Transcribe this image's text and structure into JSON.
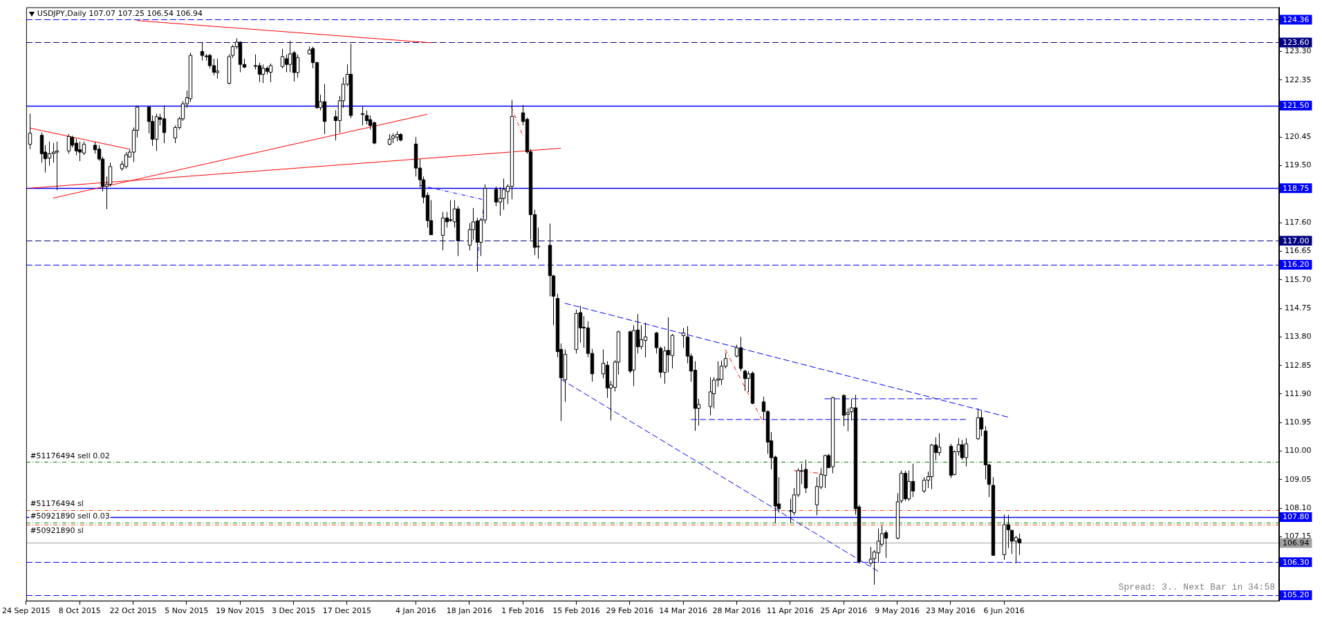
{
  "chart_data": {
    "type": "candlestick",
    "title": "USDJPY,Daily 107.07 107.25 106.54 106.94",
    "color": "#000000",
    "x": [
      "2015-09-25",
      "2015-09-28",
      "2015-09-29",
      "2015-09-30",
      "2015-10-01",
      "2015-10-02",
      "2015-10-05",
      "2015-10-06",
      "2015-10-07",
      "2015-10-08",
      "2015-10-09",
      "2015-10-12",
      "2015-10-13",
      "2015-10-14",
      "2015-10-15",
      "2015-10-16",
      "2015-10-19",
      "2015-10-20",
      "2015-10-21",
      "2015-10-22",
      "2015-10-23",
      "2015-10-26",
      "2015-10-27",
      "2015-10-28",
      "2015-10-29",
      "2015-10-30",
      "2015-11-02",
      "2015-11-03",
      "2015-11-04",
      "2015-11-05",
      "2015-11-06",
      "2015-11-09",
      "2015-11-10",
      "2015-11-11",
      "2015-11-12",
      "2015-11-13",
      "2015-11-16",
      "2015-11-17",
      "2015-11-18",
      "2015-11-19",
      "2015-11-20",
      "2015-11-23",
      "2015-11-24",
      "2015-11-25",
      "2015-11-26",
      "2015-11-27",
      "2015-11-30",
      "2015-12-01",
      "2015-12-02",
      "2015-12-03",
      "2015-12-04",
      "2015-12-07",
      "2015-12-08",
      "2015-12-09",
      "2015-12-10",
      "2015-12-11",
      "2015-12-14",
      "2015-12-15",
      "2015-12-16",
      "2015-12-17",
      "2015-12-18",
      "2015-12-21",
      "2015-12-22",
      "2015-12-23",
      "2015-12-24",
      "2015-12-28",
      "2015-12-29",
      "2015-12-30",
      "2015-12-31",
      "2016-01-04",
      "2016-01-05",
      "2016-01-06",
      "2016-01-07",
      "2016-01-08",
      "2016-01-11",
      "2016-01-12",
      "2016-01-13",
      "2016-01-14",
      "2016-01-15",
      "2016-01-18",
      "2016-01-19",
      "2016-01-20",
      "2016-01-21",
      "2016-01-22",
      "2016-01-25",
      "2016-01-26",
      "2016-01-27",
      "2016-01-28",
      "2016-01-29",
      "2016-02-01",
      "2016-02-02",
      "2016-02-03",
      "2016-02-04",
      "2016-02-05",
      "2016-02-08",
      "2016-02-09",
      "2016-02-10",
      "2016-02-11",
      "2016-02-12",
      "2016-02-15",
      "2016-02-16",
      "2016-02-17",
      "2016-02-18",
      "2016-02-19",
      "2016-02-22",
      "2016-02-23",
      "2016-02-24",
      "2016-02-25",
      "2016-02-26",
      "2016-02-29",
      "2016-03-01",
      "2016-03-02",
      "2016-03-03",
      "2016-03-04",
      "2016-03-07",
      "2016-03-08",
      "2016-03-09",
      "2016-03-10",
      "2016-03-11",
      "2016-03-14",
      "2016-03-15",
      "2016-03-16",
      "2016-03-17",
      "2016-03-18",
      "2016-03-21",
      "2016-03-22",
      "2016-03-23",
      "2016-03-24",
      "2016-03-25",
      "2016-03-28",
      "2016-03-29",
      "2016-03-30",
      "2016-03-31",
      "2016-04-01",
      "2016-04-04",
      "2016-04-05",
      "2016-04-06",
      "2016-04-07",
      "2016-04-08",
      "2016-04-11",
      "2016-04-12",
      "2016-04-13",
      "2016-04-14",
      "2016-04-15",
      "2016-04-18",
      "2016-04-19",
      "2016-04-20",
      "2016-04-21",
      "2016-04-22",
      "2016-04-25",
      "2016-04-26",
      "2016-04-27",
      "2016-04-28",
      "2016-04-29",
      "2016-05-02",
      "2016-05-03",
      "2016-05-04",
      "2016-05-05",
      "2016-05-06",
      "2016-05-09",
      "2016-05-10",
      "2016-05-11",
      "2016-05-12",
      "2016-05-13",
      "2016-05-16",
      "2016-05-17",
      "2016-05-18",
      "2016-05-19",
      "2016-05-20",
      "2016-05-23",
      "2016-05-24",
      "2016-05-25",
      "2016-05-26",
      "2016-05-27",
      "2016-05-30",
      "2016-05-31",
      "2016-06-01",
      "2016-06-02",
      "2016-06-03",
      "2016-06-06",
      "2016-06-07",
      "2016-06-08",
      "2016-06-09",
      "2016-06-10"
    ],
    "ohlc": [
      [
        120.21,
        121.23,
        120.05,
        120.58
      ],
      [
        120.51,
        120.6,
        119.6,
        119.9
      ],
      [
        119.95,
        120.18,
        119.27,
        119.73
      ],
      [
        119.75,
        120.3,
        119.5,
        119.9
      ],
      [
        119.9,
        120.25,
        119.6,
        119.95
      ],
      [
        119.95,
        120.3,
        118.68,
        119.99
      ],
      [
        119.99,
        120.55,
        119.9,
        120.47
      ],
      [
        120.44,
        120.5,
        120.1,
        120.18
      ],
      [
        120.25,
        120.4,
        119.85,
        119.99
      ],
      [
        120.03,
        120.3,
        119.65,
        119.95
      ],
      [
        119.92,
        120.3,
        119.85,
        120.21
      ],
      [
        120.18,
        120.3,
        119.9,
        120.03
      ],
      [
        120.05,
        120.18,
        119.66,
        119.72
      ],
      [
        119.72,
        119.8,
        118.64,
        118.81
      ],
      [
        118.81,
        119.14,
        118.05,
        118.88
      ],
      [
        118.88,
        119.6,
        118.81,
        119.47
      ],
      [
        119.4,
        119.66,
        119.33,
        119.55
      ],
      [
        119.47,
        119.95,
        119.4,
        119.86
      ],
      [
        119.79,
        120.05,
        119.77,
        119.95
      ],
      [
        119.95,
        120.77,
        119.62,
        120.68
      ],
      [
        120.68,
        121.5,
        120.44,
        121.45
      ],
      [
        121.45,
        121.5,
        120.58,
        120.97
      ],
      [
        120.97,
        121.17,
        120.16,
        120.38
      ],
      [
        120.38,
        121.23,
        119.99,
        121.13
      ],
      [
        121.1,
        121.23,
        120.84,
        121.04
      ],
      [
        121.06,
        121.5,
        120.25,
        120.6
      ],
      [
        120.42,
        120.84,
        120.25,
        120.77
      ],
      [
        120.77,
        121.13,
        120.7,
        121.06
      ],
      [
        121.06,
        121.65,
        120.99,
        121.56
      ],
      [
        121.56,
        122.0,
        121.43,
        121.76
      ],
      [
        121.73,
        123.26,
        121.62,
        123.17
      ],
      [
        123.3,
        123.6,
        123.0,
        123.17
      ],
      [
        123.15,
        123.22,
        123.0,
        123.13
      ],
      [
        123.17,
        123.22,
        122.74,
        122.83
      ],
      [
        122.83,
        123.06,
        122.51,
        122.61
      ],
      [
        122.6,
        123.06,
        122.4,
        122.65
      ],
      [
        122.24,
        123.2,
        122.2,
        123.13
      ],
      [
        123.17,
        123.52,
        123.09,
        123.46
      ],
      [
        123.46,
        123.74,
        123.39,
        123.61
      ],
      [
        123.61,
        123.64,
        122.61,
        122.87
      ],
      [
        122.87,
        123.06,
        122.74,
        122.78
      ],
      [
        122.83,
        123.2,
        122.7,
        122.82
      ],
      [
        122.83,
        122.93,
        122.28,
        122.54
      ],
      [
        122.54,
        122.87,
        122.25,
        122.74
      ],
      [
        122.74,
        122.8,
        122.54,
        122.64
      ],
      [
        122.61,
        122.9,
        122.28,
        122.83
      ],
      [
        122.8,
        123.39,
        122.74,
        123.13
      ],
      [
        123.06,
        123.2,
        122.61,
        122.87
      ],
      [
        122.87,
        123.65,
        122.61,
        123.22
      ],
      [
        123.26,
        123.32,
        122.3,
        122.6
      ],
      [
        122.6,
        123.2,
        122.43,
        123.1
      ],
      [
        123.22,
        123.46,
        123.2,
        123.35
      ],
      [
        123.4,
        123.46,
        122.74,
        122.93
      ],
      [
        122.93,
        122.96,
        121.39,
        121.43
      ],
      [
        121.43,
        121.86,
        121.34,
        121.63
      ],
      [
        121.63,
        122.22,
        120.55,
        120.97
      ],
      [
        121.13,
        121.34,
        120.34,
        121.0
      ],
      [
        121.0,
        121.82,
        120.6,
        121.66
      ],
      [
        121.66,
        122.44,
        121.43,
        122.21
      ],
      [
        122.21,
        122.87,
        122.15,
        122.54
      ],
      [
        122.54,
        123.56,
        121.08,
        121.17
      ],
      [
        121.2,
        121.47,
        120.84,
        121.23
      ],
      [
        121.17,
        121.34,
        120.87,
        121.0
      ],
      [
        121.03,
        121.17,
        120.7,
        120.84
      ],
      [
        120.93,
        120.97,
        120.21,
        120.25
      ],
      [
        120.21,
        120.55,
        120.18,
        120.38
      ],
      [
        120.41,
        120.58,
        120.25,
        120.49
      ],
      [
        120.45,
        120.64,
        120.31,
        120.54
      ],
      [
        120.54,
        120.58,
        120.31,
        120.35
      ],
      [
        120.22,
        120.45,
        119.14,
        119.42
      ],
      [
        119.42,
        119.72,
        118.77,
        119.03
      ],
      [
        119.03,
        119.14,
        118.25,
        118.45
      ],
      [
        118.51,
        118.61,
        117.44,
        117.67
      ],
      [
        117.67,
        118.35,
        117.2,
        117.2
      ],
      [
        117.18,
        117.96,
        116.68,
        117.76
      ],
      [
        117.76,
        117.96,
        117.44,
        117.63
      ],
      [
        117.7,
        118.35,
        117.63,
        117.69
      ],
      [
        117.63,
        118.35,
        117.44,
        118.06
      ],
      [
        118.06,
        118.15,
        116.49,
        117.0
      ],
      [
        116.85,
        117.59,
        116.68,
        117.37
      ],
      [
        117.37,
        118.09,
        117.04,
        117.63
      ],
      [
        117.66,
        117.76,
        115.97,
        116.95
      ],
      [
        116.95,
        117.76,
        116.49,
        117.69
      ],
      [
        117.69,
        118.88,
        117.57,
        118.74
      ],
      [
        118.71,
        118.81,
        118.15,
        118.29
      ],
      [
        118.29,
        118.78,
        117.83,
        118.41
      ],
      [
        118.41,
        119.07,
        118.03,
        118.71
      ],
      [
        118.64,
        118.88,
        118.22,
        118.81
      ],
      [
        118.81,
        121.69,
        118.38,
        121.14
      ],
      [
        121.26,
        121.52,
        120.84,
        120.97
      ],
      [
        121.04,
        121.1,
        119.9,
        119.96
      ],
      [
        119.96,
        120.05,
        117.04,
        117.87
      ],
      [
        117.87,
        118.03,
        116.52,
        116.78
      ],
      [
        116.8,
        117.44,
        116.4,
        116.82
      ],
      [
        116.85,
        117.57,
        115.15,
        115.84
      ],
      [
        115.83,
        115.87,
        114.19,
        115.15
      ],
      [
        115.08,
        115.24,
        113.12,
        113.31
      ],
      [
        113.38,
        113.58,
        111.0,
        112.44
      ],
      [
        112.37,
        113.38,
        111.64,
        113.22
      ],
      [
        113.38,
        114.71,
        113.25,
        114.58
      ],
      [
        114.61,
        114.84,
        113.61,
        114.1
      ],
      [
        114.12,
        114.49,
        113.44,
        114.1
      ],
      [
        114.1,
        114.32,
        113.12,
        113.25
      ],
      [
        113.25,
        113.4,
        112.31,
        112.57
      ],
      [
        112.57,
        113.38,
        112.42,
        112.92
      ],
      [
        112.86,
        112.99,
        111.77,
        112.1
      ],
      [
        112.1,
        112.33,
        111.02,
        112.2
      ],
      [
        112.12,
        113.03,
        111.98,
        112.96
      ],
      [
        112.96,
        114.01,
        112.55,
        113.97
      ],
      [
        113.97,
        114.01,
        112.59,
        112.66
      ],
      [
        112.7,
        114.19,
        112.16,
        114.01
      ],
      [
        114.03,
        114.56,
        113.25,
        113.47
      ],
      [
        113.48,
        114.19,
        113.38,
        113.71
      ],
      [
        113.68,
        114.27,
        113.12,
        113.8
      ],
      [
        113.93,
        113.97,
        113.25,
        113.44
      ],
      [
        113.42,
        113.48,
        112.44,
        112.62
      ],
      [
        112.62,
        113.48,
        112.24,
        113.33
      ],
      [
        113.35,
        114.45,
        112.62,
        113.2
      ],
      [
        113.18,
        113.9,
        112.75,
        113.85
      ],
      [
        113.84,
        114.1,
        113.44,
        113.93
      ],
      [
        113.8,
        114.16,
        112.92,
        113.16
      ],
      [
        113.16,
        113.25,
        112.31,
        112.66
      ],
      [
        112.69,
        112.99,
        110.67,
        111.42
      ],
      [
        111.42,
        111.74,
        110.85,
        111.55
      ],
      [
        111.48,
        112.46,
        111.19,
        111.97
      ],
      [
        111.91,
        112.46,
        111.42,
        112.36
      ],
      [
        112.36,
        112.99,
        112.14,
        112.4
      ],
      [
        112.38,
        113.01,
        112.2,
        112.83
      ],
      [
        112.82,
        113.27,
        112.75,
        113.08
      ],
      [
        113.16,
        113.54,
        113.12,
        113.44
      ],
      [
        113.44,
        113.8,
        112.66,
        112.75
      ],
      [
        112.66,
        112.71,
        112.0,
        112.41
      ],
      [
        112.42,
        112.66,
        111.97,
        112.57
      ],
      [
        112.59,
        112.65,
        111.55,
        111.59
      ],
      [
        111.64,
        111.81,
        111.05,
        111.32
      ],
      [
        111.32,
        111.35,
        109.91,
        110.3
      ],
      [
        110.34,
        110.63,
        109.39,
        109.78
      ],
      [
        109.8,
        109.85,
        107.62,
        108.17
      ],
      [
        108.24,
        109.13,
        107.95,
        108.08
      ],
      [
        108.0,
        108.41,
        107.62,
        108.02
      ],
      [
        107.95,
        108.77,
        107.86,
        108.54
      ],
      [
        108.54,
        109.43,
        108.47,
        109.35
      ],
      [
        109.33,
        109.58,
        108.9,
        109.35
      ],
      [
        109.39,
        109.71,
        108.6,
        108.77
      ],
      [
        108.21,
        109.13,
        107.86,
        108.82
      ],
      [
        108.8,
        109.43,
        108.73,
        109.22
      ],
      [
        109.19,
        109.88,
        108.77,
        109.85
      ],
      [
        109.85,
        109.91,
        109.43,
        109.45
      ],
      [
        109.48,
        111.81,
        109.26,
        111.78
      ],
      [
        111.85,
        111.89,
        110.83,
        111.19
      ],
      [
        111.22,
        111.42,
        110.66,
        111.28
      ],
      [
        111.31,
        111.74,
        111.02,
        111.44
      ],
      [
        111.44,
        111.87,
        107.88,
        108.08
      ],
      [
        108.14,
        108.21,
        106.25,
        106.31
      ],
      [
        106.27,
        106.81,
        106.18,
        106.4
      ],
      [
        106.42,
        106.7,
        105.55,
        106.64
      ],
      [
        106.61,
        107.42,
        106.28,
        107.0
      ],
      [
        106.9,
        107.52,
        106.81,
        107.25
      ],
      [
        107.28,
        107.36,
        106.44,
        107.1
      ],
      [
        107.1,
        108.6,
        107.06,
        108.31
      ],
      [
        108.34,
        109.35,
        108.27,
        109.26
      ],
      [
        109.26,
        109.35,
        108.34,
        108.41
      ],
      [
        108.41,
        109.35,
        108.34,
        108.99
      ],
      [
        108.99,
        109.58,
        108.47,
        108.67
      ],
      [
        108.67,
        109.13,
        108.6,
        109.03
      ],
      [
        109.03,
        109.32,
        108.77,
        109.15
      ],
      [
        109.15,
        110.24,
        108.73,
        110.2
      ],
      [
        110.2,
        110.46,
        109.69,
        109.95
      ],
      [
        109.95,
        110.6,
        109.85,
        110.13
      ],
      [
        110.16,
        110.24,
        109.1,
        109.19
      ],
      [
        109.22,
        110.02,
        109.19,
        109.98
      ],
      [
        109.98,
        110.43,
        109.85,
        110.21
      ],
      [
        110.21,
        110.37,
        109.71,
        109.78
      ],
      [
        109.78,
        110.43,
        109.49,
        110.24
      ],
      [
        110.41,
        111.42,
        110.37,
        111.11
      ],
      [
        111.11,
        111.35,
        110.5,
        110.73
      ],
      [
        110.67,
        110.83,
        109.06,
        109.54
      ],
      [
        109.54,
        109.58,
        108.47,
        108.89
      ],
      [
        108.86,
        109.13,
        106.51,
        106.53
      ],
      [
        106.55,
        107.88,
        106.38,
        107.55
      ],
      [
        107.55,
        107.88,
        106.77,
        107.38
      ],
      [
        107.36,
        107.38,
        106.57,
        107.0
      ],
      [
        107.0,
        107.18,
        106.27,
        107.12
      ],
      [
        107.07,
        107.25,
        106.54,
        106.94
      ]
    ],
    "series": [
      {
        "type": "line",
        "x": [
          "2015-10-23",
          "2016-01-08"
        ],
        "values": [
          124.33,
          123.59
        ],
        "color": "#ff0000",
        "line_style": "solid"
      },
      {
        "type": "line",
        "x": [
          "2015-09-25",
          "2015-10-21"
        ],
        "values": [
          120.75,
          120.05
        ],
        "color": "#ff0000",
        "line_style": "solid"
      },
      {
        "type": "line",
        "x": [
          "2015-10-01",
          "2016-01-07"
        ],
        "values": [
          118.42,
          121.21
        ],
        "color": "#ff0000",
        "line_style": "solid"
      },
      {
        "type": "line",
        "x": [
          "2015-09-25",
          "2016-02-11"
        ],
        "values": [
          118.75,
          120.08
        ],
        "color": "#ff0000",
        "line_style": "solid"
      },
      {
        "type": "line",
        "x": [
          "2016-02-12",
          "2016-06-07"
        ],
        "values": [
          114.92,
          111.13
        ],
        "color": "#0000ff",
        "line_style": "dashed"
      },
      {
        "type": "line",
        "x": [
          "2016-02-11",
          "2016-05-04"
        ],
        "values": [
          112.39,
          106.0
        ],
        "color": "#0000ff",
        "line_style": "dashed"
      },
      {
        "type": "line",
        "x": [
          "2016-04-20",
          "2016-05-30"
        ],
        "values": [
          111.74,
          111.74
        ],
        "color": "#0000ff",
        "line_style": "dashed"
      },
      {
        "type": "line",
        "x": [
          "2016-03-16",
          "2016-05-27"
        ],
        "values": [
          111.05,
          111.05
        ],
        "color": "#0000ff",
        "line_style": "dashed"
      },
      {
        "type": "line",
        "x": [
          "2016-01-05",
          "2016-01-22",
          "2016-01-20"
        ],
        "values": [
          118.85,
          118.36,
          116.24
        ],
        "color": "#0000ff",
        "line_style": "dotted"
      },
      {
        "type": "line",
        "x": [
          "2016-01-29",
          "2016-02-01"
        ],
        "values": [
          121.45,
          120.5
        ],
        "color": "#ff0000",
        "line_style": "dotted"
      },
      {
        "type": "line",
        "x": [
          "2016-03-25",
          "2016-04-04"
        ],
        "values": [
          113.38,
          110.95
        ],
        "color": "#ff0000",
        "line_style": "dotted"
      },
      {
        "type": "line",
        "x": [
          "2016-04-12",
          "2016-04-19"
        ],
        "values": [
          109.35,
          109.26
        ],
        "color": "#ff0000",
        "line_style": "dotted"
      }
    ],
    "ref_lines": [
      {
        "axis": "y",
        "value": 124.36,
        "label": "124.36",
        "color": "#0000ff",
        "line_style": "dashed"
      },
      {
        "axis": "y",
        "value": 123.6,
        "label": "123.60",
        "color": "#000080",
        "line_style": "dashed"
      },
      {
        "axis": "y",
        "value": 121.5,
        "label": "121.50",
        "color": "#0000ff",
        "line_style": "solid"
      },
      {
        "axis": "y",
        "value": 118.75,
        "label": "118.75",
        "color": "#0000ff",
        "line_style": "solid"
      },
      {
        "axis": "y",
        "value": 117.0,
        "label": "117.00",
        "color": "#000080",
        "line_style": "dashed"
      },
      {
        "axis": "y",
        "value": 116.2,
        "label": "116.20",
        "color": "#0000ff",
        "line_style": "dashed"
      },
      {
        "axis": "y",
        "value": 109.64,
        "color": "#008000",
        "line_style": "dotted"
      },
      {
        "axis": "y",
        "value": 108.04,
        "color": "#ff4500",
        "line_style": "dotted"
      },
      {
        "axis": "y",
        "value": 107.8,
        "label": "107.80",
        "color": "#0000ff",
        "line_style": "solid"
      },
      {
        "axis": "y",
        "value": 107.63,
        "color": "#008000",
        "line_style": "dotted"
      },
      {
        "axis": "y",
        "value": 107.54,
        "color": "#ff4500",
        "line_style": "dotted"
      },
      {
        "axis": "y",
        "value": 106.94,
        "label": "106.94",
        "color": "#a0a0a0",
        "line_style": "solid"
      },
      {
        "axis": "y",
        "value": 106.3,
        "label": "106.30",
        "color": "#0000ff",
        "line_style": "dashed"
      },
      {
        "axis": "y",
        "value": 105.2,
        "label": "105.20",
        "color": "#0000ff",
        "line_style": "dashed"
      }
    ],
    "annotations": [
      {
        "text": "#51176494 sell 0.02",
        "x": "2015-09-25",
        "y": 109.64
      },
      {
        "text": "#51176494 sl",
        "x": "2015-09-25",
        "y": 108.04
      },
      {
        "text": "#50921890 sell 0.03",
        "x": "2015-09-25",
        "y": 107.63
      },
      {
        "text": "#50921890 sl",
        "x": "2015-09-25",
        "y": 107.54
      },
      "Spread: 3.. Next Bar in 34:58"
    ],
    "xlim": [
      "2015-09-24",
      "2016-08-17"
    ],
    "xticks": [
      {
        "value": "2015-09-24",
        "label": "24 Sep 2015"
      },
      {
        "value": "2015-10-08",
        "label": "8 Oct 2015"
      },
      {
        "value": "2015-10-22",
        "label": "22 Oct 2015"
      },
      {
        "value": "2015-11-05",
        "label": "5 Nov 2015"
      },
      {
        "value": "2015-11-19",
        "label": "19 Nov 2015"
      },
      {
        "value": "2015-12-03",
        "label": "3 Dec 2015"
      },
      {
        "value": "2015-12-17",
        "label": "17 Dec 2015"
      },
      {
        "value": "2016-01-04",
        "label": "4 Jan 2016"
      },
      {
        "value": "2016-01-18",
        "label": "18 Jan 2016"
      },
      {
        "value": "2016-02-01",
        "label": "1 Feb 2016"
      },
      {
        "value": "2016-02-15",
        "label": "15 Feb 2016"
      },
      {
        "value": "2016-02-29",
        "label": "29 Feb 2016"
      },
      {
        "value": "2016-03-14",
        "label": "14 Mar 2016"
      },
      {
        "value": "2016-03-28",
        "label": "28 Mar 2016"
      },
      {
        "value": "2016-04-11",
        "label": "11 Apr 2016"
      },
      {
        "value": "2016-04-25",
        "label": "25 Apr 2016"
      },
      {
        "value": "2016-05-09",
        "label": "9 May 2016"
      },
      {
        "value": "2016-05-23",
        "label": "23 May 2016"
      },
      {
        "value": "2016-06-06",
        "label": "6 Jun 2016"
      }
    ],
    "ylim": [
      105.0,
      124.77
    ],
    "yticks": [
      {
        "value": 107.15,
        "label": "107.15"
      },
      {
        "value": 108.1,
        "label": "108.10"
      },
      {
        "value": 109.05,
        "label": "109.05"
      },
      {
        "value": 110.0,
        "label": "110.00"
      },
      {
        "value": 110.95,
        "label": "110.95"
      },
      {
        "value": 111.9,
        "label": "111.90"
      },
      {
        "value": 112.85,
        "label": "112.85"
      },
      {
        "value": 113.8,
        "label": "113.80"
      },
      {
        "value": 114.75,
        "label": "114.75"
      },
      {
        "value": 115.7,
        "label": "115.70"
      },
      {
        "value": 116.65,
        "label": "116.65"
      },
      {
        "value": 117.6,
        "label": "117.60"
      },
      {
        "value": 119.5,
        "label": "119.50"
      },
      {
        "value": 120.45,
        "label": "120.45"
      },
      {
        "value": 122.35,
        "label": "122.35"
      },
      {
        "value": 123.3,
        "label": "123.30"
      }
    ],
    "legend": false
  }
}
